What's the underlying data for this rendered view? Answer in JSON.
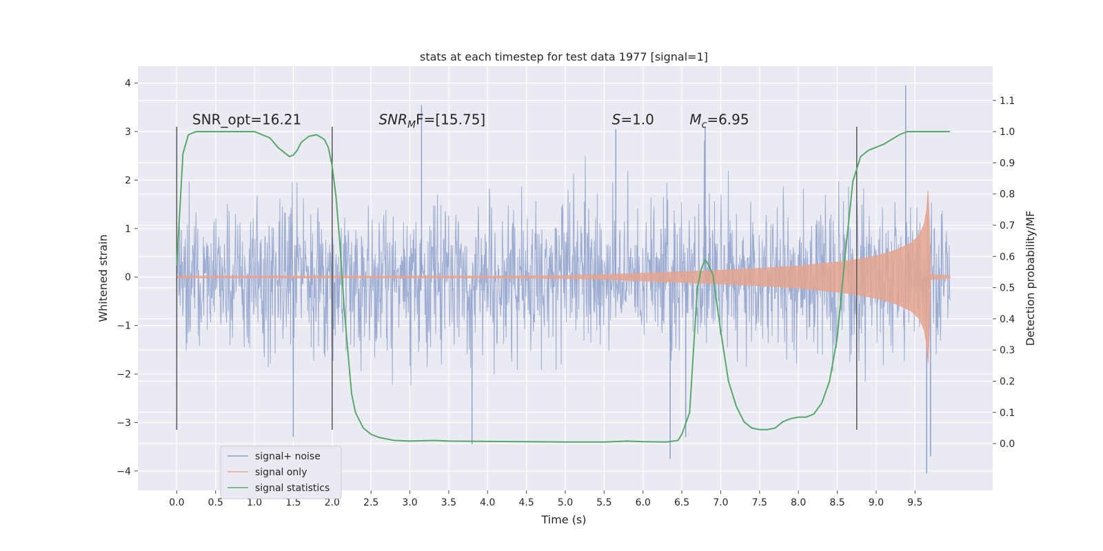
{
  "chart_data": {
    "type": "line",
    "title": "stats at each timestep for test data 1977 [signal=1]",
    "xlabel": "Time (s)",
    "ylabel": "Whitened strain",
    "y2label": "Detection probability/MF",
    "xlim": [
      -0.5,
      10.5
    ],
    "ylim": [
      -4.4,
      4.35
    ],
    "y2lim": [
      -0.15,
      1.21
    ],
    "xticks": [
      0.0,
      0.5,
      1.0,
      1.5,
      2.0,
      2.5,
      3.0,
      3.5,
      4.0,
      4.5,
      5.0,
      5.5,
      6.0,
      6.5,
      7.0,
      7.5,
      8.0,
      8.5,
      9.0,
      9.5
    ],
    "xtick_labels": [
      "0.0",
      "0.5",
      "1.0",
      "1.5",
      "2.0",
      "2.5",
      "3.0",
      "3.5",
      "4.0",
      "4.5",
      "5.0",
      "5.5",
      "6.0",
      "6.5",
      "7.0",
      "7.5",
      "8.0",
      "8.5",
      "9.0",
      "9.5"
    ],
    "yticks": [
      -4,
      -3,
      -2,
      -1,
      0,
      1,
      2,
      3,
      4
    ],
    "ytick_labels": [
      "−4",
      "−3",
      "−2",
      "−1",
      "0",
      "1",
      "2",
      "3",
      "4"
    ],
    "y2ticks": [
      0.0,
      0.1,
      0.2,
      0.3,
      0.4,
      0.5,
      0.6,
      0.7,
      0.8,
      0.9,
      1.0,
      1.1
    ],
    "y2tick_labels": [
      "0.0",
      "0.1",
      "0.2",
      "0.3",
      "0.4",
      "0.5",
      "0.6",
      "0.7",
      "0.8",
      "0.9",
      "1.0",
      "1.1"
    ],
    "grid": true,
    "legend_position": "lower-left",
    "series": [
      {
        "name": "signal+ noise",
        "color": "#8da0cb",
        "axis": "left",
        "style": "noise-band",
        "x_range": [
          0.0,
          9.95
        ],
        "typical_envelope": [
          -1.7,
          1.7
        ],
        "peaks": [
          {
            "x": 1.5,
            "y": -3.3
          },
          {
            "x": 3.15,
            "y": 3.55
          },
          {
            "x": 3.8,
            "y": -3.45
          },
          {
            "x": 5.65,
            "y": 3.05
          },
          {
            "x": 6.35,
            "y": -3.75
          },
          {
            "x": 6.55,
            "y": -3.3
          },
          {
            "x": 6.8,
            "y": 3.1
          },
          {
            "x": 9.38,
            "y": 3.95
          },
          {
            "x": 9.65,
            "y": -4.05
          },
          {
            "x": 9.7,
            "y": -3.7
          }
        ]
      },
      {
        "name": "signal only",
        "color": "#e5a48f",
        "axis": "left",
        "style": "chirp-envelope",
        "x": [
          0.0,
          1.0,
          2.0,
          3.0,
          4.0,
          5.0,
          5.5,
          6.0,
          6.5,
          7.0,
          7.5,
          8.0,
          8.5,
          8.75,
          9.0,
          9.25,
          9.45,
          9.55,
          9.62,
          9.66,
          9.68,
          9.69,
          9.95
        ],
        "amplitude": [
          0.02,
          0.02,
          0.02,
          0.02,
          0.02,
          0.03,
          0.05,
          0.08,
          0.11,
          0.14,
          0.18,
          0.23,
          0.31,
          0.36,
          0.44,
          0.55,
          0.7,
          0.85,
          1.1,
          1.5,
          2.2,
          0.05,
          0.03
        ]
      },
      {
        "name": "signal statistics",
        "color": "#55a868",
        "axis": "right",
        "x": [
          0.0,
          0.08,
          0.15,
          0.25,
          0.5,
          0.8,
          1.0,
          1.2,
          1.3,
          1.4,
          1.45,
          1.5,
          1.55,
          1.6,
          1.7,
          1.8,
          1.9,
          1.95,
          2.0,
          2.05,
          2.1,
          2.15,
          2.2,
          2.25,
          2.3,
          2.4,
          2.5,
          2.6,
          2.8,
          3.0,
          3.3,
          3.5,
          4.0,
          4.5,
          5.0,
          5.5,
          5.8,
          6.0,
          6.3,
          6.45,
          6.5,
          6.6,
          6.65,
          6.7,
          6.75,
          6.8,
          6.85,
          6.9,
          7.0,
          7.1,
          7.2,
          7.3,
          7.4,
          7.5,
          7.6,
          7.7,
          7.8,
          7.9,
          8.0,
          8.1,
          8.2,
          8.3,
          8.4,
          8.5,
          8.6,
          8.7,
          8.8,
          8.9,
          9.0,
          9.1,
          9.2,
          9.3,
          9.4,
          9.6,
          9.8,
          9.95
        ],
        "y": [
          0.57,
          0.93,
          0.99,
          1.0,
          1.0,
          1.0,
          1.0,
          0.98,
          0.95,
          0.93,
          0.92,
          0.925,
          0.94,
          0.965,
          0.985,
          0.99,
          0.975,
          0.95,
          0.89,
          0.79,
          0.64,
          0.45,
          0.3,
          0.16,
          0.1,
          0.05,
          0.03,
          0.02,
          0.01,
          0.008,
          0.01,
          0.008,
          0.007,
          0.006,
          0.005,
          0.005,
          0.008,
          0.006,
          0.005,
          0.01,
          0.03,
          0.1,
          0.3,
          0.5,
          0.56,
          0.59,
          0.57,
          0.54,
          0.36,
          0.2,
          0.12,
          0.07,
          0.05,
          0.045,
          0.045,
          0.05,
          0.07,
          0.08,
          0.085,
          0.085,
          0.095,
          0.13,
          0.2,
          0.34,
          0.6,
          0.84,
          0.92,
          0.94,
          0.95,
          0.96,
          0.975,
          0.99,
          1.0,
          1.0,
          1.0,
          1.0
        ]
      }
    ],
    "vertical_markers": [
      {
        "x": 0.0,
        "y_range": [
          -3.15,
          3.1
        ],
        "color": "#555555"
      },
      {
        "x": 2.0,
        "y_range": [
          -3.15,
          3.1
        ],
        "color": "#555555"
      },
      {
        "x": 8.75,
        "y_range": [
          -3.15,
          3.1
        ],
        "color": "#555555"
      }
    ],
    "annotations": [
      {
        "prefix": "SNR_opt=16.21",
        "sub": "",
        "suffix": "",
        "x": 0.2,
        "y": 3.15,
        "italic": false
      },
      {
        "prefix": "SNR",
        "sub": "M",
        "suffix": "F=[15.75]",
        "x": 2.6,
        "y": 3.15,
        "italic": true
      },
      {
        "prefix": "S",
        "sub": "",
        "suffix": "=1.0",
        "x": 5.6,
        "y": 3.15,
        "italic": true
      },
      {
        "prefix": "M",
        "sub": "c",
        "suffix": "=6.95",
        "x": 6.6,
        "y": 3.15,
        "italic": true
      }
    ]
  }
}
